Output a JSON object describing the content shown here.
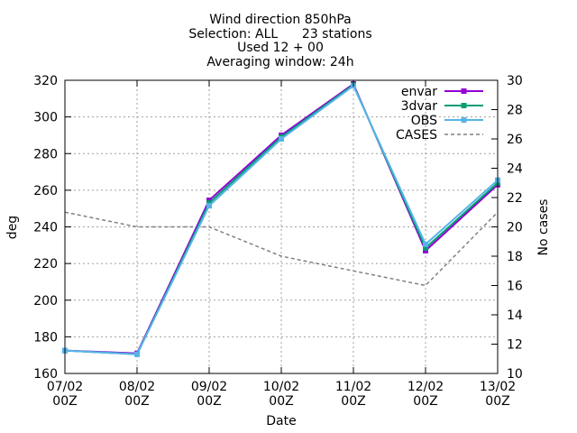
{
  "chart_data": {
    "type": "line",
    "title_lines": [
      "Wind direction 850hPa",
      "Selection: ALL      23 stations",
      "Used 12 + 00",
      "Averaging window: 24h"
    ],
    "xlabel": "Date",
    "ylabel": "deg",
    "y2label": "No cases",
    "categories": [
      "07/02 00Z",
      "08/02 00Z",
      "09/02 00Z",
      "10/02 00Z",
      "11/02 00Z",
      "12/02 00Z",
      "13/02 00Z"
    ],
    "category_lines": [
      [
        "07/02",
        "00Z"
      ],
      [
        "08/02",
        "00Z"
      ],
      [
        "09/02",
        "00Z"
      ],
      [
        "10/02",
        "00Z"
      ],
      [
        "11/02",
        "00Z"
      ],
      [
        "12/02",
        "00Z"
      ],
      [
        "13/02",
        "00Z"
      ]
    ],
    "ylim": [
      160,
      320
    ],
    "yticks": [
      160,
      180,
      200,
      220,
      240,
      260,
      280,
      300,
      320
    ],
    "y2lim": [
      10,
      30
    ],
    "y2ticks": [
      10,
      12,
      14,
      16,
      18,
      20,
      22,
      24,
      26,
      28,
      30
    ],
    "grid": true,
    "legend_position": "top-right",
    "series": [
      {
        "name": "envar",
        "axis": "y",
        "color": "#9400d3",
        "values": [
          172.5,
          171,
          254.5,
          290,
          318,
          227,
          263
        ]
      },
      {
        "name": "3dvar",
        "axis": "y",
        "color": "#009e73",
        "values": [
          172.5,
          170.5,
          253,
          289,
          317.5,
          228.5,
          264
        ]
      },
      {
        "name": "OBS",
        "axis": "y",
        "color": "#56b4e9",
        "values": [
          172.5,
          170.5,
          251.5,
          288,
          317,
          230.5,
          265.5
        ]
      },
      {
        "name": "CASES",
        "axis": "y2",
        "color": "#808080",
        "dashed": true,
        "values": [
          21,
          20,
          20,
          18,
          17,
          16,
          21
        ]
      }
    ]
  }
}
